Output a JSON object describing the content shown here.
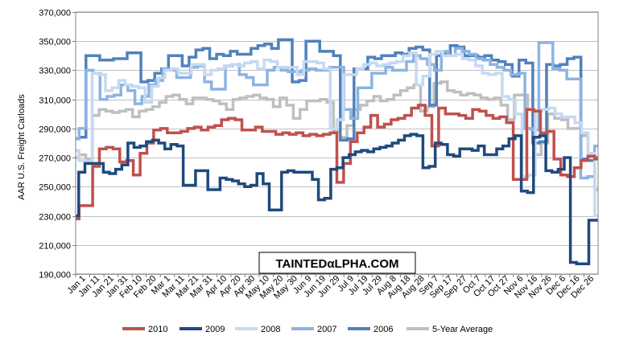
{
  "chart_data": {
    "type": "line",
    "title": "",
    "ylabel": "AAR U.S. Freight Carloads",
    "xlabel": "",
    "ylim": [
      190000,
      370000
    ],
    "ytick_values": [
      190000,
      210000,
      230000,
      250000,
      270000,
      290000,
      310000,
      330000,
      350000,
      370000
    ],
    "ytick_labels": [
      "190,000",
      "210,000",
      "230,000",
      "250,000",
      "270,000",
      "290,000",
      "310,000",
      "330,000",
      "350,000",
      "370,000"
    ],
    "xtick_labels": [
      "Jan 1",
      "Jan 11",
      "Jan 21",
      "Jan 31",
      "Feb 10",
      "Feb 20",
      "Mar 1",
      "Mar 11",
      "Mar 21",
      "Mar 31",
      "Apr 10",
      "Apr 20",
      "Apr 30",
      "May 10",
      "May 20",
      "May 30",
      "Jun 9",
      "Jun 19",
      "Jun 29",
      "Jul 9",
      "Jul 19",
      "Jul 29",
      "Aug 8",
      "Aug 18",
      "Aug 28",
      "Sep 7",
      "Sep 17",
      "Sep 27",
      "Oct 7",
      "Oct 17",
      "Oct 27",
      "Nov 6",
      "Nov 16",
      "Nov 26",
      "Dec 6",
      "Dec 16",
      "Dec 26"
    ],
    "grid": true,
    "legend_position": "bottom",
    "watermark": "TAINTEDαLPHA.COM",
    "series": [
      {
        "name": "2010",
        "color": "#c0504d",
        "values": [
          228000,
          237000,
          237000,
          264000,
          276000,
          277000,
          276000,
          267000,
          268000,
          258000,
          273000,
          280000,
          289000,
          290000,
          287000,
          287000,
          288000,
          290000,
          291000,
          289000,
          291000,
          292000,
          296000,
          297000,
          296000,
          289000,
          289000,
          291000,
          288000,
          288000,
          286000,
          287000,
          286000,
          287000,
          285000,
          286000,
          285000,
          286000,
          287000,
          253000,
          266000,
          281000,
          287000,
          291000,
          299000,
          291000,
          293000,
          296000,
          297000,
          299000,
          304000,
          306000,
          299000,
          278000,
          304000,
          300000,
          300000,
          299000,
          297000,
          303000,
          302000,
          299000,
          297000,
          298000,
          294000,
          255000,
          255000,
          303000,
          302000,
          287000,
          288000,
          269000,
          258000,
          257000,
          263000,
          268000,
          271000,
          269000
        ]
      },
      {
        "name": "2009",
        "color": "#1f497d",
        "values": [
          230000,
          260000,
          266000,
          266000,
          266000,
          260000,
          259000,
          262000,
          265000,
          280000,
          277000,
          278000,
          281000,
          282000,
          280000,
          276000,
          279000,
          278000,
          251000,
          251000,
          261000,
          261000,
          248000,
          248000,
          256000,
          255000,
          254000,
          252000,
          250000,
          251000,
          259000,
          252000,
          234000,
          234000,
          260000,
          261000,
          260000,
          260000,
          260000,
          255000,
          241000,
          242000,
          262000,
          263000,
          270000,
          272000,
          274000,
          275000,
          274000,
          276000,
          277000,
          278000,
          280000,
          282000,
          285000,
          286000,
          285000,
          263000,
          264000,
          280000,
          279000,
          272000,
          271000,
          276000,
          276000,
          275000,
          278000,
          272000,
          272000,
          276000,
          278000,
          283000,
          285000,
          247000,
          246000,
          284000,
          285000,
          261000,
          260000,
          262000,
          270000,
          198000,
          197000,
          197000,
          227000,
          227000
        ]
      },
      {
        "name": "2008",
        "color": "#c6d9f1",
        "values": [
          275000,
          268000,
          267000,
          328000,
          327000,
          316000,
          318000,
          323000,
          320000,
          319000,
          318000,
          308000,
          319000,
          325000,
          330000,
          331000,
          328000,
          328000,
          334000,
          334000,
          327000,
          330000,
          331000,
          333000,
          334000,
          333000,
          335000,
          336000,
          331000,
          337000,
          336000,
          332000,
          332000,
          332000,
          327000,
          336000,
          336000,
          335000,
          331000,
          290000,
          296000,
          327000,
          327000,
          331000,
          334000,
          335000,
          333000,
          334000,
          335000,
          336000,
          340000,
          342000,
          320000,
          326000,
          341000,
          343000,
          340000,
          340000,
          341000,
          338000,
          337000,
          333000,
          328000,
          327000,
          328000,
          312000,
          310000,
          300000,
          257000,
          258000,
          302000,
          303000,
          304000,
          300000,
          298000,
          298000,
          294000,
          287000,
          273000,
          230000
        ]
      },
      {
        "name": "2007",
        "color": "#8db3e2",
        "values": [
          283000,
          290000,
          330000,
          328000,
          310000,
          312000,
          313000,
          320000,
          316000,
          307000,
          312000,
          320000,
          323000,
          331000,
          330000,
          325000,
          325000,
          332000,
          333000,
          322000,
          317000,
          317000,
          333000,
          334000,
          327000,
          325000,
          320000,
          320000,
          330000,
          332000,
          330000,
          329000,
          329000,
          330000,
          331000,
          330000,
          330000,
          332000,
          332000,
          303000,
          297000,
          318000,
          318000,
          328000,
          328000,
          332000,
          330000,
          330000,
          336000,
          340000,
          338000,
          334000,
          330000,
          343000,
          340000,
          345000,
          343000,
          341000,
          338000,
          337000,
          334000,
          332000,
          330000,
          327000,
          328000,
          290000,
          289000,
          349000,
          349000,
          331000,
          330000,
          324000,
          324000,
          256000,
          257000,
          278000
        ]
      },
      {
        "name": "2006",
        "color": "#4f81bd",
        "values": [
          283000,
          284000,
          340000,
          340000,
          337000,
          337000,
          338000,
          338000,
          342000,
          342000,
          322000,
          323000,
          328000,
          331000,
          340000,
          340000,
          333000,
          339000,
          344000,
          345000,
          338000,
          341000,
          340000,
          343000,
          341000,
          341000,
          345000,
          347000,
          348000,
          345000,
          351000,
          351000,
          322000,
          323000,
          350000,
          350000,
          343000,
          343000,
          340000,
          282000,
          283000,
          331000,
          331000,
          339000,
          338000,
          340000,
          340000,
          342000,
          341000,
          345000,
          346000,
          344000,
          306000,
          340000,
          341000,
          347000,
          346000,
          340000,
          340000,
          339000,
          340000,
          337000,
          336000,
          334000,
          326000,
          337000,
          335000,
          280000,
          281000,
          334000,
          333000,
          334000,
          338000,
          339000,
          269000,
          268000,
          270000
        ]
      },
      {
        "name": "5-Year Average",
        "color": "#bfbfbf",
        "values": [
          270000,
          272000,
          269000,
          299000,
          303000,
          302000,
          301000,
          302000,
          303000,
          298000,
          302000,
          303000,
          305000,
          308000,
          312000,
          313000,
          310000,
          307000,
          311000,
          311000,
          310000,
          309000,
          307000,
          303000,
          310000,
          311000,
          312000,
          313000,
          311000,
          310000,
          305000,
          311000,
          306000,
          297000,
          303000,
          309000,
          309000,
          310000,
          308000,
          288000,
          284000,
          292000,
          303000,
          306000,
          309000,
          312000,
          309000,
          310000,
          313000,
          316000,
          318000,
          320000,
          302000,
          305000,
          321000,
          322000,
          316000,
          315000,
          313000,
          314000,
          313000,
          311000,
          310000,
          311000,
          306000,
          296000,
          313000,
          313000,
          303000,
          272000,
          280000,
          300000,
          297000,
          296000,
          290000,
          290000,
          285000,
          268000,
          248000
        ]
      }
    ]
  }
}
